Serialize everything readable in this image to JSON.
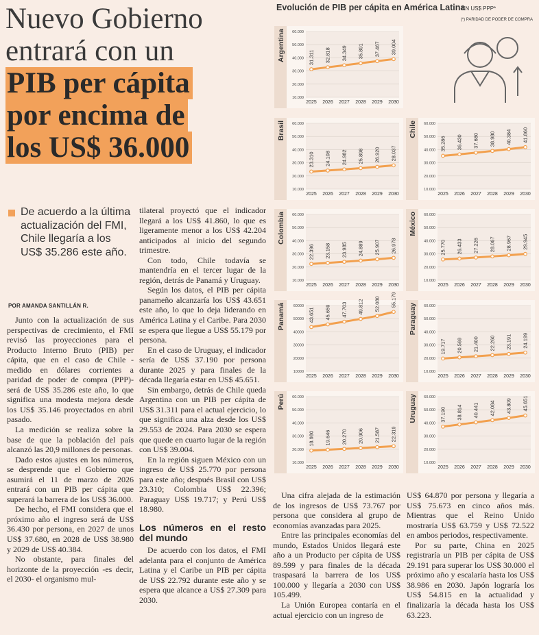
{
  "headline": {
    "lines": [
      "Nuevo Gobierno",
      "entrará con un",
      "PIB per cápita",
      "por encima de",
      "los US$ 36.000"
    ]
  },
  "lede": "De acuerdo a la última actualización del FMI, Chile llegaría a los US$ 35.286 este año.",
  "byline": "POR AMANDA SANTILLÁN R.",
  "body": {
    "column_1": [
      "Junto con la actualización de sus perspectivas de crecimiento, el FMI revisó las proyecciones para el Producto Interno Bruto (PIB) per cápita, que en el caso de Chile -medido en dólares corrientes a paridad de poder de compra (PPP)- será de US$ 35.286 este año, lo que significa una modesta mejora desde los US$ 35.146 proyectados en abril pasado.",
      "La medición se realiza sobre la base de que la población del país alcanzó las 20,9 millones de personas.",
      "Dado estos ajustes en los números, se desprende que el Gobierno que asumirá el 11 de marzo de 2026 entrará con un PIB per cápita que superará la barrera de los US$ 36.000.",
      "De hecho, el FMI considera que el próximo año el ingreso será de US$ 36.430 por persona, en 2027 de unos US$ 37.680, en 2028 de US$ 38.980 y 2029 de US$ 40.384.",
      "No obstante, para finales del horizonte de la proyección -es decir, el 2030- el organismo mul-"
    ],
    "column_2": [
      "tilateral proyectó que el indicador llegará a los US$ 41.860, lo que es ligeramente menor a los US$ 42.204 anticipados al inicio del segundo trimestre.",
      "Con todo, Chile todavía se mantendría en el tercer lugar de la región, detrás de Panamá y Uruguay.",
      "Según los datos, el PIB per cápita panameño alcanzaría los US$ 43.651 este año, lo que lo deja liderando en América Latina y el Caribe. Para 2030 se espera que llegue a US$ 55.179 por persona.",
      "En el caso de Uruguay, el indicador sería de US$ 37.190 por persona durante 2025 y para finales de la década llegaría estar en US$ 45.651.",
      "Sin embargo, detrás de Chile queda Argentina con un PIB per cápita de US$ 31.311 para el actual ejercicio, lo que significa una alza desde los US$ 29.553 de 2024. Para 2030 se espera que quede en cuarto lugar de la región con US$ 39.004.",
      "En la región siguen México con un ingreso de US$ 25.770 por persona para este año; después Brasil con US$ 23.310; Colombia US$ 22.396; Paraguay US$ 19.717; y Perú US$ 18.980."
    ],
    "subhead": "Los números en el resto del mundo",
    "column_2_after_subhead": [
      "De acuerdo con los datos, el FMI adelanta para el conjunto de América Latina y el Caribe un PIB per cápita de US$ 22.792 durante este año y se espera que alcance a US$ 27.309 para 2030."
    ],
    "column_3": [
      "Una cifra alejada de la estimación de los ingresos de US$ 73.767 por persona que considera al grupo de economías avanzadas para 2025.",
      "Entre las principales economías del mundo, Estados Unidos llegará este año a un Producto per cápita de US$ 89.599 y para finales de la década traspasará la barrera de los US$ 100.000 y llegaría a 2030 con US$ 105.499.",
      "La Unión Europea contaría en el actual ejercicio con un ingreso de"
    ],
    "column_4": [
      "US$ 64.870 por persona y llegaría a US$ 75.673 en cinco años más. Mientras que el Reino Unido mostraría US$ 63.759 y US$ 72.522 en ambos periodos, respectivamente.",
      "Por su parte, China en 2025 registraría un PIB per cápita de US$ 29.191 para superar los US$ 30.000 el próximo año y escalaría hasta los US$ 38.986 en 2030. Japón lograría los US$ 54.815 en la actualidad y finalizaría la década hasta los US$ 63.223."
    ]
  },
  "graphic": {
    "title": "Evolución de PIB per cápita en América Latina",
    "unit": "EN US$ PPP*",
    "note": "(*) PARIDAD DE PODER DE COMPRA"
  },
  "chart_data": [
    {
      "type": "line",
      "title": "Argentina",
      "categories": [
        "2025",
        "2026",
        "2027",
        "2028",
        "2029",
        "2030"
      ],
      "values": [
        31311,
        32818,
        34349,
        35891,
        37467,
        39004
      ],
      "value_labels": [
        "31.311",
        "32.818",
        "34.349",
        "35.891",
        "37.467",
        "39.004"
      ],
      "color": "#f2a04e",
      "grid": true,
      "ylim": [
        10000,
        60000
      ],
      "yticks": [
        {
          "value": 10000,
          "label": "10.000"
        },
        {
          "value": 20000,
          "label": "20.000"
        },
        {
          "value": 30000,
          "label": "30.000"
        },
        {
          "value": 40000,
          "label": "40.000"
        },
        {
          "value": 50000,
          "label": "50.000"
        },
        {
          "value": 60000,
          "label": "60.000"
        }
      ]
    },
    {
      "type": "line",
      "title": "Brasil",
      "categories": [
        "2025",
        "2026",
        "2027",
        "2028",
        "2029",
        "2030"
      ],
      "values": [
        23310,
        24108,
        24982,
        25898,
        26920,
        28037
      ],
      "value_labels": [
        "23.310",
        "24.108",
        "24.982",
        "25.898",
        "26.920",
        "28.037"
      ],
      "color": "#f2a04e",
      "grid": true,
      "ylim": [
        10000,
        60000
      ],
      "yticks": [
        {
          "value": 10000,
          "label": "10.000"
        },
        {
          "value": 20000,
          "label": "20.000"
        },
        {
          "value": 30000,
          "label": "30.000"
        },
        {
          "value": 40000,
          "label": "40.000"
        },
        {
          "value": 50000,
          "label": "50.000"
        },
        {
          "value": 60000,
          "label": "60.000"
        }
      ]
    },
    {
      "type": "line",
      "title": "Chile",
      "categories": [
        "2025",
        "2026",
        "2027",
        "2028",
        "2029",
        "2030"
      ],
      "values": [
        35286,
        36430,
        37680,
        38980,
        40384,
        41860
      ],
      "value_labels": [
        "35.286",
        "36.430",
        "37.680",
        "38.980",
        "40.384",
        "41.860"
      ],
      "color": "#f2a04e",
      "grid": true,
      "ylim": [
        10000,
        60000
      ],
      "yticks": [
        {
          "value": 10000,
          "label": "10.000"
        },
        {
          "value": 20000,
          "label": "20.000"
        },
        {
          "value": 30000,
          "label": "30.000"
        },
        {
          "value": 40000,
          "label": "40.000"
        },
        {
          "value": 50000,
          "label": "50.000"
        },
        {
          "value": 60000,
          "label": "60.000"
        }
      ]
    },
    {
      "type": "line",
      "title": "Colombia",
      "categories": [
        "2025",
        "2026",
        "2027",
        "2028",
        "2029",
        "2030"
      ],
      "values": [
        22396,
        23158,
        23985,
        24889,
        25907,
        26978
      ],
      "value_labels": [
        "22.396",
        "23.158",
        "23.985",
        "24.889",
        "25.907",
        "26.978"
      ],
      "color": "#f2a04e",
      "grid": true,
      "ylim": [
        10000,
        60000
      ],
      "yticks": [
        {
          "value": 10000,
          "label": "10.000"
        },
        {
          "value": 20000,
          "label": "20.000"
        },
        {
          "value": 30000,
          "label": "30.000"
        },
        {
          "value": 40000,
          "label": "40.000"
        },
        {
          "value": 50000,
          "label": "50.000"
        },
        {
          "value": 60000,
          "label": "60.000"
        }
      ]
    },
    {
      "type": "line",
      "title": "México",
      "categories": [
        "2025",
        "2026",
        "2027",
        "2028",
        "2029",
        "2030"
      ],
      "values": [
        25770,
        26433,
        27226,
        28067,
        28967,
        29945
      ],
      "value_labels": [
        "25.770",
        "26.433",
        "27.226",
        "28.067",
        "28.967",
        "29.945"
      ],
      "color": "#f2a04e",
      "grid": true,
      "ylim": [
        10000,
        60000
      ],
      "yticks": [
        {
          "value": 10000,
          "label": "10.000"
        },
        {
          "value": 20000,
          "label": "20.000"
        },
        {
          "value": 30000,
          "label": "30.000"
        },
        {
          "value": 40000,
          "label": "40.000"
        },
        {
          "value": 50000,
          "label": "50.000"
        },
        {
          "value": 60000,
          "label": "60.000"
        }
      ]
    },
    {
      "type": "line",
      "title": "Panamá",
      "categories": [
        "2025",
        "2026",
        "2027",
        "2028",
        "2029",
        "2030"
      ],
      "values": [
        43651,
        45659,
        47703,
        49812,
        52080,
        55179
      ],
      "value_labels": [
        "43.651",
        "45.659",
        "47.703",
        "49.812",
        "52.080",
        "55.179"
      ],
      "color": "#f2a04e",
      "grid": true,
      "ylim": [
        10000,
        60000
      ],
      "yticks": [
        10000,
        20000,
        30000,
        40000,
        50000,
        60000
      ]
    },
    {
      "type": "line",
      "title": "Paraguay",
      "categories": [
        "2025",
        "2026",
        "2027",
        "2028",
        "2029",
        "2030"
      ],
      "values": [
        19717,
        20569,
        21400,
        22260,
        23191,
        24199
      ],
      "value_labels": [
        "19.717",
        "20.569",
        "21.400",
        "22.260",
        "23.191",
        "24.199"
      ],
      "color": "#f2a04e",
      "grid": true,
      "ylim": [
        10000,
        60000
      ],
      "yticks": [
        {
          "value": 10000,
          "label": "10.000"
        },
        {
          "value": 20000,
          "label": "20.000"
        },
        {
          "value": 30000,
          "label": "30.000"
        },
        {
          "value": 40000,
          "label": "40.000"
        },
        {
          "value": 50000,
          "label": "50.000"
        },
        {
          "value": 60000,
          "label": "60.000"
        }
      ]
    },
    {
      "type": "line",
      "title": "Perú",
      "categories": [
        "2025",
        "2026",
        "2027",
        "2028",
        "2029",
        "2030"
      ],
      "values": [
        18980,
        19646,
        20270,
        20906,
        21587,
        22319
      ],
      "value_labels": [
        "18.980",
        "19.646",
        "20.270",
        "20.906",
        "21.587",
        "22.319"
      ],
      "color": "#f2a04e",
      "grid": true,
      "ylim": [
        10000,
        60000
      ],
      "yticks": [
        {
          "value": 10000,
          "label": "10.000"
        },
        {
          "value": 20000,
          "label": "20.000"
        },
        {
          "value": 30000,
          "label": "30.000"
        },
        {
          "value": 40000,
          "label": "40.000"
        },
        {
          "value": 50000,
          "label": "50.000"
        },
        {
          "value": 60000,
          "label": "60.000"
        }
      ]
    },
    {
      "type": "line",
      "title": "Uruguay",
      "categories": [
        "2025",
        "2026",
        "2027",
        "2028",
        "2029",
        "2030"
      ],
      "values": [
        37190,
        38814,
        40441,
        42084,
        43809,
        45651
      ],
      "value_labels": [
        "37.190",
        "38.814",
        "40.441",
        "42.084",
        "43.809",
        "45.651"
      ],
      "color": "#f2a04e",
      "grid": true,
      "ylim": [
        10000,
        60000
      ],
      "yticks": [
        {
          "value": 10000,
          "label": "10.000"
        },
        {
          "value": 20000,
          "label": "20.000"
        },
        {
          "value": 30000,
          "label": "30.000"
        },
        {
          "value": 40000,
          "label": "40.000"
        },
        {
          "value": 50000,
          "label": "50.000"
        },
        {
          "value": 60000,
          "label": "60.000"
        }
      ]
    }
  ]
}
